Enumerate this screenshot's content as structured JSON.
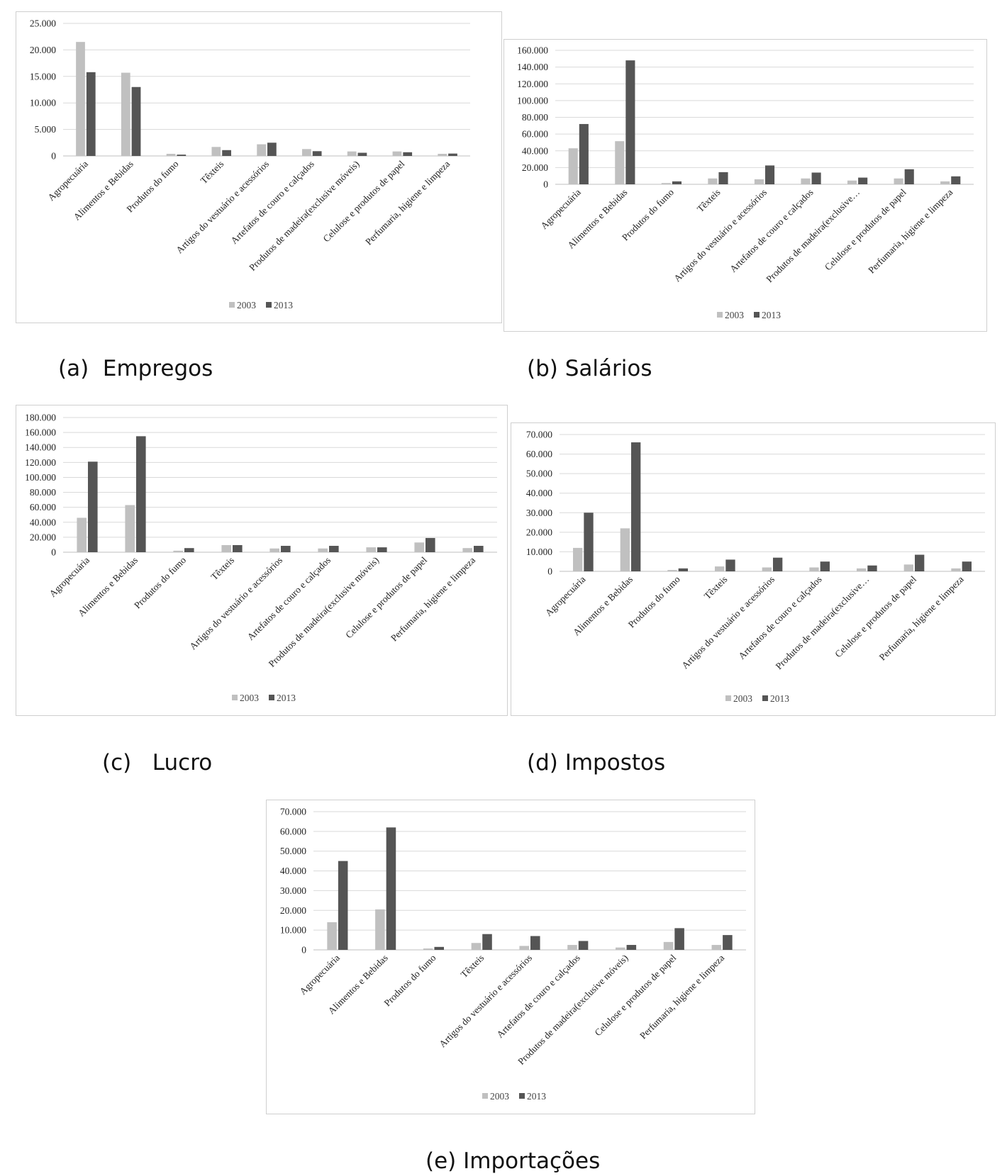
{
  "colors": {
    "s2003": "#c0c0c0",
    "s2013": "#555555",
    "grid": "#d9d9d9",
    "axis": "#bfbfbf"
  },
  "chart_data": [
    {
      "type": "bar",
      "caption": "(a)  Empregos",
      "categories": [
        "Agropecuária",
        "Alimentos e Bebidas",
        "Produtos do fumo",
        "Têxteis",
        "Artigos do vestuário e acessórios",
        "Artefatos de couro e calçados",
        "Produtos de madeira(exclusive móveis)",
        "Celulose e produtos de papel",
        "Perfumaria, higiene e limpeza"
      ],
      "series": [
        {
          "name": "2003",
          "values": [
            21500,
            15700,
            400,
            1700,
            2200,
            1300,
            850,
            850,
            400
          ]
        },
        {
          "name": "2013",
          "values": [
            15800,
            13000,
            250,
            1100,
            2500,
            900,
            600,
            700,
            450
          ]
        }
      ],
      "ylim": [
        0,
        25000
      ],
      "yticks": [
        "0",
        "5.000",
        "10.000",
        "15.000",
        "20.000",
        "25.000"
      ],
      "legend": "bottom",
      "grid": true
    },
    {
      "type": "bar",
      "caption": "(b) Salários",
      "categories": [
        "Agropecuária",
        "Alimentos e Bebidas",
        "Produtos do fumo",
        "Têxteis",
        "Artigos do vestuário e acessórios",
        "Artefatos de couro e calçados",
        "Produtos de madeira(exclusive…",
        "Celulose e produtos de papel",
        "Perfumaria, higiene e limpeza"
      ],
      "series": [
        {
          "name": "2003",
          "values": [
            43000,
            51500,
            1500,
            7000,
            6000,
            7000,
            4500,
            7000,
            3500
          ]
        },
        {
          "name": "2013",
          "values": [
            72000,
            148000,
            3500,
            14500,
            22500,
            14000,
            8000,
            18000,
            9500
          ]
        }
      ],
      "ylim": [
        0,
        160000
      ],
      "yticks": [
        "0",
        "20.000",
        "40.000",
        "60.000",
        "80.000",
        "100.000",
        "120.000",
        "140.000",
        "160.000"
      ],
      "legend": "bottom",
      "grid": true
    },
    {
      "type": "bar",
      "caption": "(c)   Lucro",
      "categories": [
        "Agropecuária",
        "Alimentos e Bebidas",
        "Produtos do fumo",
        "Têxteis",
        "Artigos do vestuário e acessórios",
        "Artefatos de couro e calçados",
        "Produtos de madeira(exclusive móveis)",
        "Celulose e produtos de papel",
        "Perfumaria, higiene e limpeza"
      ],
      "series": [
        {
          "name": "2003",
          "values": [
            46000,
            63000,
            2000,
            9500,
            5000,
            5000,
            6500,
            13000,
            5500
          ]
        },
        {
          "name": "2013",
          "values": [
            121000,
            155000,
            5500,
            9500,
            8500,
            8500,
            6500,
            19000,
            8500
          ]
        }
      ],
      "ylim": [
        0,
        180000
      ],
      "yticks": [
        "0",
        "20.000",
        "40.000",
        "60.000",
        "80.000",
        "100.000",
        "120.000",
        "140.000",
        "160.000",
        "180.000"
      ],
      "legend": "bottom",
      "grid": true
    },
    {
      "type": "bar",
      "caption": "(d) Impostos",
      "categories": [
        "Agropecuária",
        "Alimentos e Bebidas",
        "Produtos do fumo",
        "Têxteis",
        "Artigos do vestuário e acessórios",
        "Artefatos de couro e calçados",
        "Produtos de madeira(exclusive…",
        "Celulose e produtos de papel",
        "Perfumaria, higiene e limpeza"
      ],
      "series": [
        {
          "name": "2003",
          "values": [
            12000,
            22000,
            700,
            2500,
            2000,
            2000,
            1500,
            3500,
            1500
          ]
        },
        {
          "name": "2013",
          "values": [
            30000,
            66000,
            1500,
            6000,
            7000,
            5000,
            3000,
            8500,
            5000
          ]
        }
      ],
      "ylim": [
        0,
        70000
      ],
      "yticks": [
        "0",
        "10.000",
        "20.000",
        "30.000",
        "40.000",
        "50.000",
        "60.000",
        "70.000"
      ],
      "legend": "bottom",
      "grid": true
    },
    {
      "type": "bar",
      "caption": "(e) Importações",
      "categories": [
        "Agropecuária",
        "Alimentos e Bebidas",
        "Produtos do fumo",
        "Têxteis",
        "Artigos do vestuário e acessórios",
        "Artefatos de couro e calçados",
        "Produtos de madeira(exclusive móveis)",
        "Celulose e produtos de papel",
        "Perfumaria, higiene e limpeza"
      ],
      "series": [
        {
          "name": "2003",
          "values": [
            14000,
            20500,
            700,
            3500,
            2000,
            2500,
            1200,
            4000,
            2500
          ]
        },
        {
          "name": "2013",
          "values": [
            45000,
            62000,
            1500,
            8000,
            7000,
            4500,
            2500,
            11000,
            7500
          ]
        }
      ],
      "ylim": [
        0,
        70000
      ],
      "yticks": [
        "0",
        "10.000",
        "20.000",
        "30.000",
        "40.000",
        "50.000",
        "60.000",
        "70.000"
      ],
      "legend": "bottom",
      "grid": true
    }
  ]
}
